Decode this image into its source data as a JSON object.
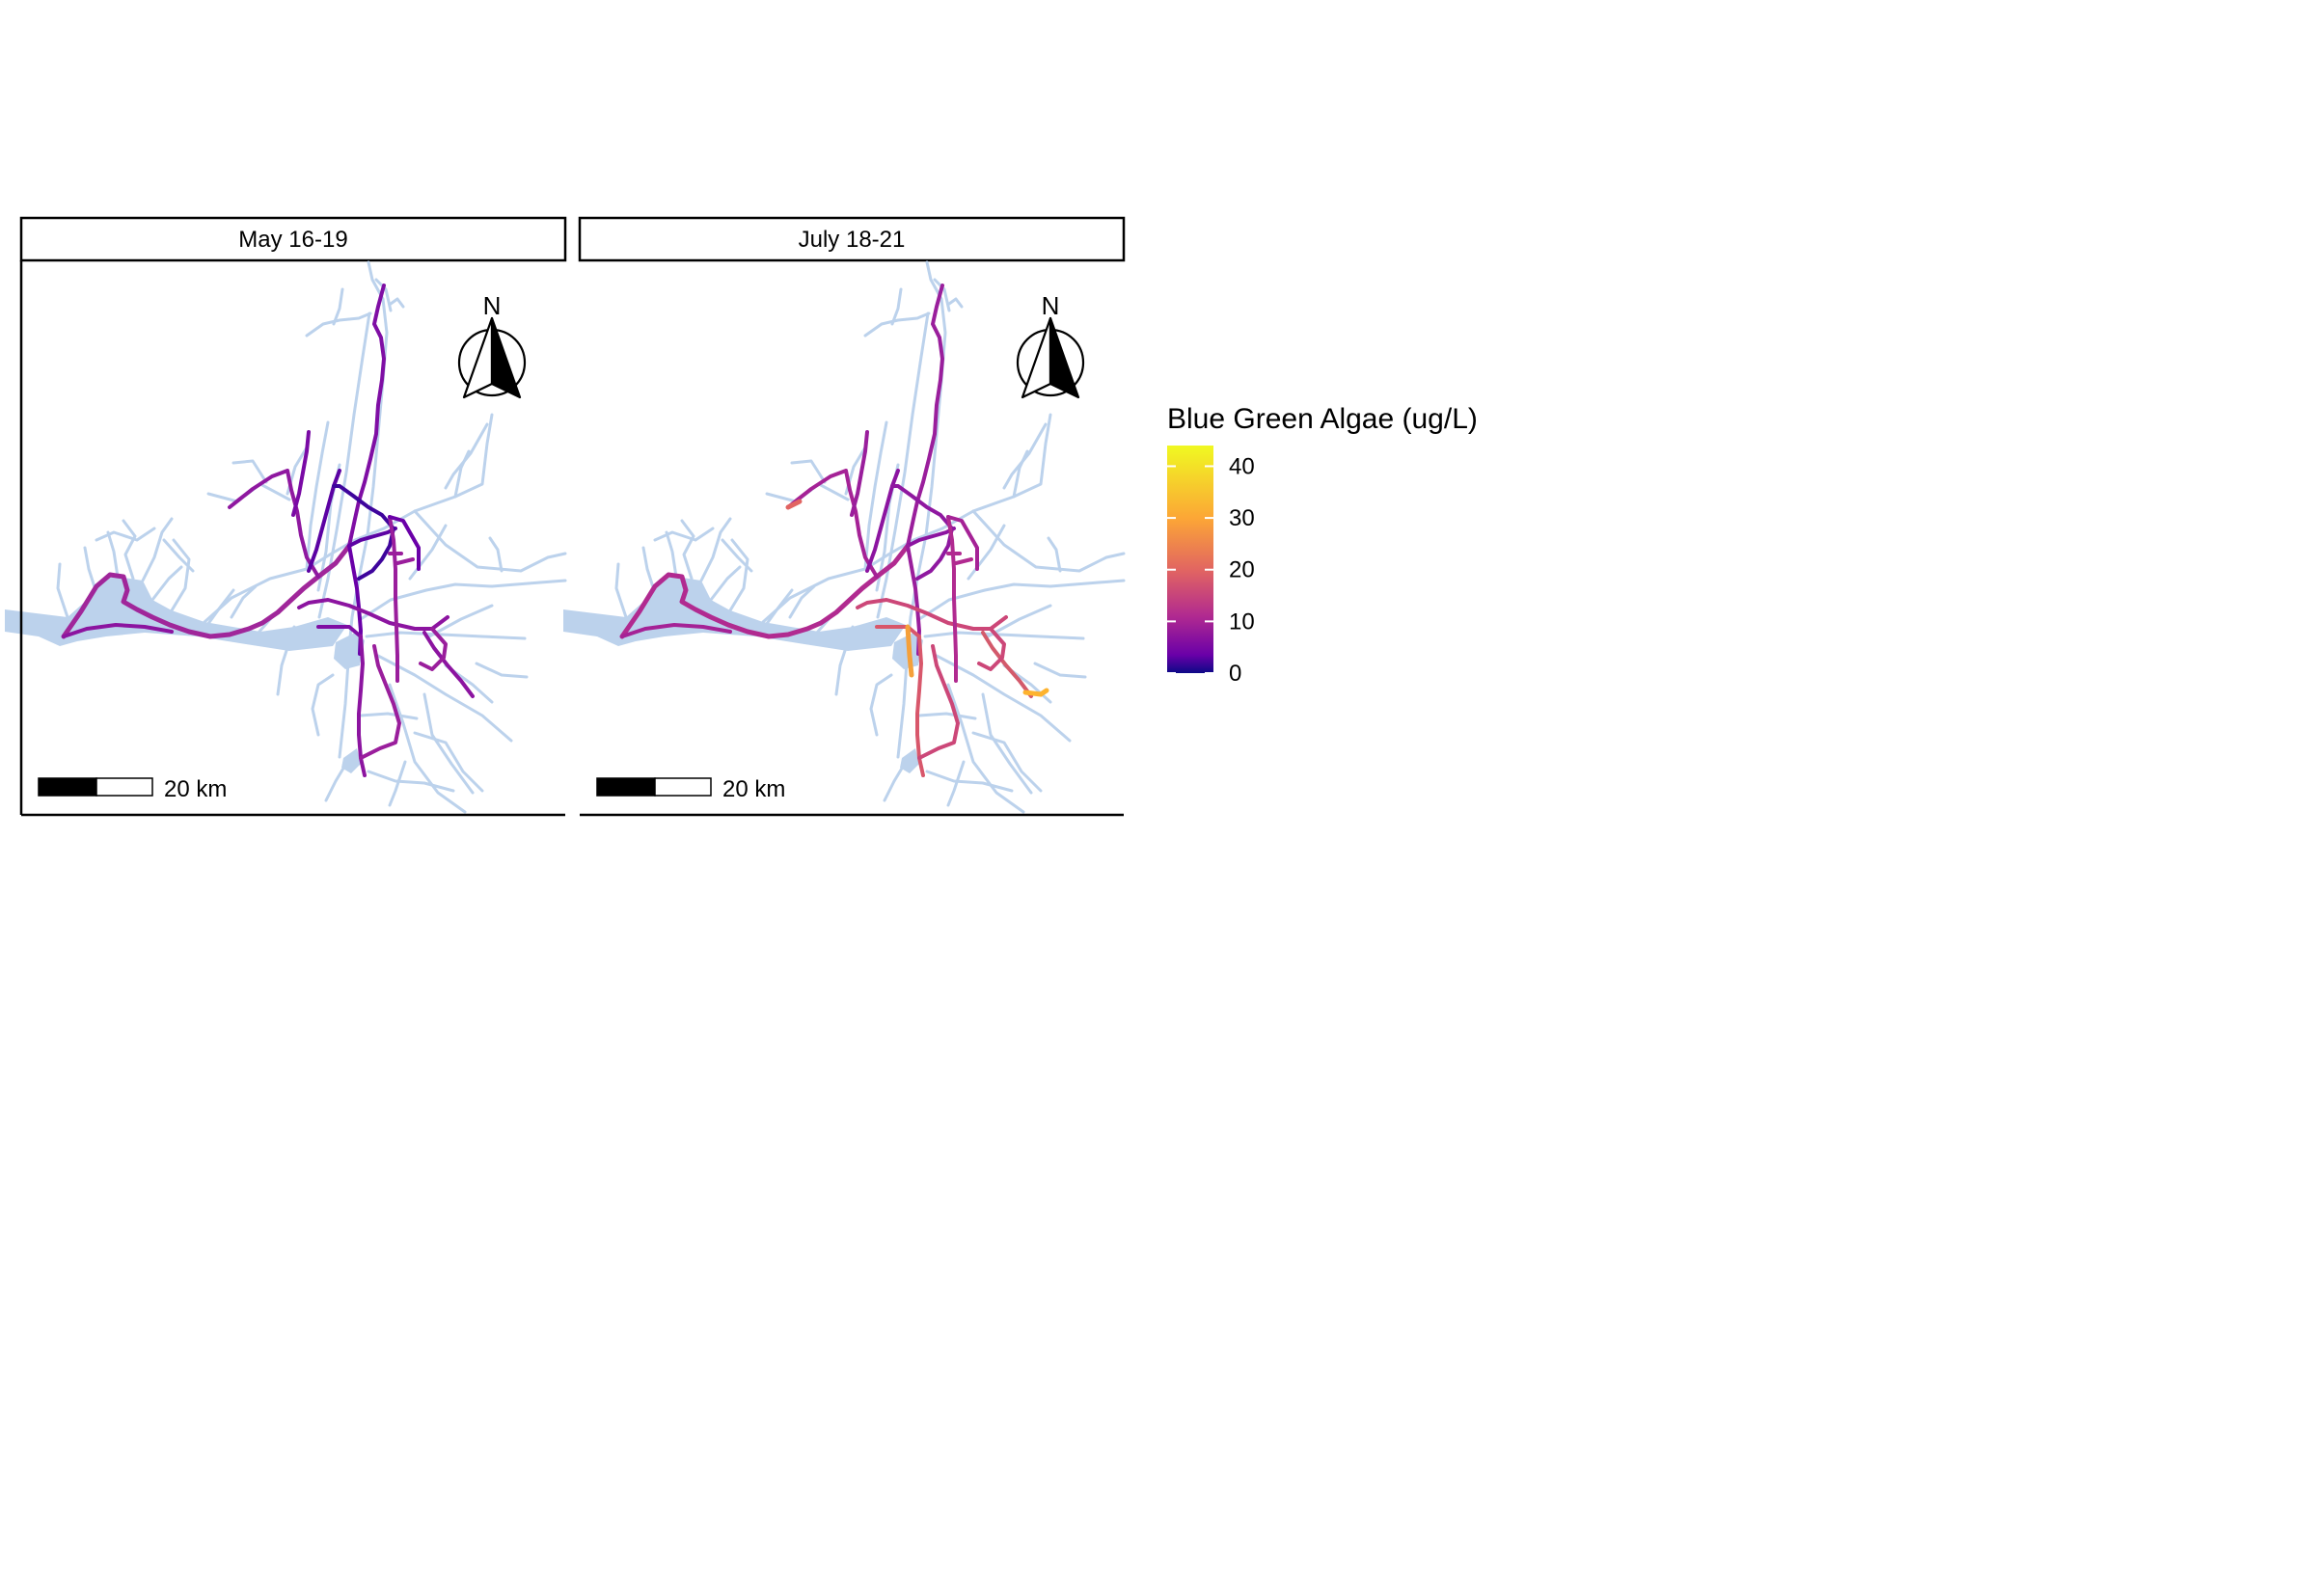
{
  "panels": [
    {
      "strip_label": "May 16-19",
      "scale_label": "20 km",
      "north_label": "N"
    },
    {
      "strip_label": "July 18-21",
      "scale_label": "20 km",
      "north_label": "N"
    }
  ],
  "legend": {
    "title": "Blue Green Algae (ug/L)",
    "ticks": [
      "40",
      "30",
      "20",
      "10",
      "0"
    ],
    "tick_values": [
      40,
      30,
      20,
      10,
      0
    ],
    "range": [
      0,
      44
    ],
    "palette": [
      "#0d0887",
      "#6a00a8",
      "#b12a90",
      "#e16462",
      "#fca636",
      "#f0f921"
    ]
  },
  "colors": {
    "water": "#bcd2ec",
    "frame": "#000000"
  }
}
